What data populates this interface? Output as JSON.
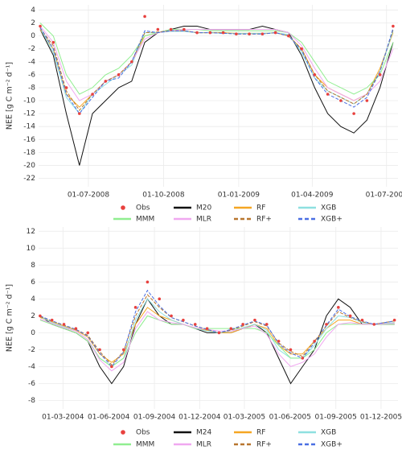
{
  "chart_data": [
    {
      "type": "line",
      "y_label": "NEE [g C m⁻² d⁻¹]",
      "grid": true,
      "xlim": [
        "2008-05-01",
        "2009-07-15"
      ],
      "xticks": [
        {
          "value": "2008-07-01",
          "label": "01-07-2008"
        },
        {
          "value": "2008-10-01",
          "label": "01-10-2008"
        },
        {
          "value": "2009-01-01",
          "label": "01-01-2009"
        },
        {
          "value": "2009-04-01",
          "label": "01-04-2009"
        },
        {
          "value": "2009-07-01",
          "label": "01-07-2009"
        }
      ],
      "ylim": [
        -23.3,
        4.8
      ],
      "yticks": [
        4,
        2,
        0,
        -2,
        -4,
        -6,
        -8,
        -10,
        -12,
        -14,
        -16,
        -18,
        -20,
        -22
      ],
      "x": [
        "2008-05-03",
        "2008-05-19",
        "2008-06-04",
        "2008-06-20",
        "2008-07-06",
        "2008-07-22",
        "2008-08-07",
        "2008-08-23",
        "2008-09-08",
        "2008-09-24",
        "2008-10-10",
        "2008-10-26",
        "2008-11-11",
        "2008-11-27",
        "2008-12-13",
        "2008-12-29",
        "2009-01-14",
        "2009-01-30",
        "2009-02-15",
        "2009-03-03",
        "2009-03-19",
        "2009-04-04",
        "2009-04-20",
        "2009-05-06",
        "2009-05-22",
        "2009-06-07",
        "2009-06-23",
        "2009-07-09"
      ],
      "series": [
        {
          "name": "Obs",
          "color": "#e8413e",
          "points": true,
          "values": [
            1.5,
            -1,
            -8,
            -12,
            -9,
            -7,
            -6,
            -4,
            3,
            1,
            1,
            1,
            0.5,
            0.5,
            0.5,
            0.3,
            0.3,
            0.3,
            0.5,
            0,
            -2,
            -6,
            -9,
            -10,
            -12,
            -10,
            -6,
            1.5
          ]
        },
        {
          "name": "M20",
          "color": "#111111",
          "values": [
            1,
            -3,
            -12,
            -20,
            -12,
            -10,
            -8,
            -7,
            -1,
            0.5,
            1,
            1.5,
            1.5,
            1,
            1,
            1,
            1,
            1.5,
            1,
            0.5,
            -3,
            -8,
            -12,
            -14,
            -15,
            -13,
            -8,
            -1
          ]
        },
        {
          "name": "RF",
          "color": "#f5a623",
          "values": [
            1,
            -2,
            -9,
            -11,
            -9,
            -7,
            -6,
            -4,
            0,
            0.5,
            0.8,
            0.8,
            0.5,
            0.5,
            0.5,
            0.4,
            0.4,
            0.4,
            0.5,
            0,
            -2,
            -6,
            -8,
            -9,
            -10,
            -9,
            -5,
            0.5
          ]
        },
        {
          "name": "XGB",
          "color": "#8ee0e0",
          "values": [
            1.2,
            -2.5,
            -9.5,
            -12,
            -9,
            -7.5,
            -6,
            -4.5,
            0.5,
            0.5,
            0.7,
            0.7,
            0.5,
            0.5,
            0.4,
            0.4,
            0.4,
            0.4,
            0.5,
            0.2,
            -2.5,
            -6.5,
            -8.5,
            -9.5,
            -10.5,
            -9,
            -5.5,
            0.8
          ]
        },
        {
          "name": "MMM",
          "color": "#90ee90",
          "values": [
            2,
            0,
            -6,
            -9,
            -8,
            -6,
            -5,
            -3,
            0,
            0.5,
            1,
            1,
            1,
            0.8,
            0.8,
            0.8,
            0.8,
            0.8,
            0.8,
            0.5,
            -1,
            -4,
            -7,
            -8,
            -9,
            -8,
            -6,
            -1
          ]
        },
        {
          "name": "MLR",
          "color": "#f0a8f0",
          "values": [
            1.5,
            -1,
            -7,
            -10,
            -9,
            -7,
            -6,
            -4,
            -0.5,
            0.5,
            0.8,
            1,
            1,
            1,
            1,
            1,
            1,
            1,
            1,
            0.5,
            -1.5,
            -5,
            -8,
            -9,
            -10,
            -9,
            -7,
            -2
          ]
        },
        {
          "name": "RF+",
          "color": "#b8762f",
          "dashed": true,
          "values": [
            1.2,
            -1.5,
            -8.5,
            -11.5,
            -9,
            -7,
            -6,
            -4,
            0.5,
            0.6,
            0.8,
            0.8,
            0.5,
            0.5,
            0.5,
            0.3,
            0.3,
            0.3,
            0.5,
            0,
            -2,
            -6,
            -8.5,
            -9.5,
            -10.5,
            -9,
            -5.5,
            1
          ]
        },
        {
          "name": "XGB+",
          "color": "#4a6fe3",
          "dashed": true,
          "values": [
            1.3,
            -2,
            -9,
            -12,
            -9.5,
            -7,
            -6.5,
            -4,
            0.8,
            0.5,
            0.8,
            0.8,
            0.5,
            0.5,
            0.4,
            0.3,
            0.3,
            0.3,
            0.5,
            0,
            -2.2,
            -6.5,
            -9,
            -10,
            -11,
            -9.5,
            -5.5,
            1.2
          ]
        }
      ]
    },
    {
      "type": "line",
      "y_label": "NEE [g C m⁻² d⁻¹]",
      "grid": true,
      "xlim": [
        "2004-01-12",
        "2006-01-04"
      ],
      "xticks": [
        {
          "value": "2004-03-01",
          "label": "01-03-2004"
        },
        {
          "value": "2004-06-01",
          "label": "01-06-2004"
        },
        {
          "value": "2004-09-01",
          "label": "01-09-2004"
        },
        {
          "value": "2004-12-01",
          "label": "01-12-2004"
        },
        {
          "value": "2005-03-01",
          "label": "01-03-2005"
        },
        {
          "value": "2005-06-01",
          "label": "01-06-2005"
        },
        {
          "value": "2005-09-01",
          "label": "01-09-2005"
        },
        {
          "value": "2005-12-01",
          "label": "01-12-2005"
        }
      ],
      "ylim": [
        -9,
        12.5
      ],
      "yticks": [
        12,
        10,
        8,
        6,
        4,
        2,
        0,
        -2,
        -4,
        -6,
        -8
      ],
      "x": [
        "2004-01-15",
        "2004-02-08",
        "2004-03-03",
        "2004-03-27",
        "2004-04-20",
        "2004-05-14",
        "2004-06-07",
        "2004-07-01",
        "2004-07-25",
        "2004-08-18",
        "2004-09-11",
        "2004-10-05",
        "2004-10-29",
        "2004-11-22",
        "2004-12-16",
        "2005-01-09",
        "2005-02-02",
        "2005-02-26",
        "2005-03-22",
        "2005-04-15",
        "2005-05-09",
        "2005-06-02",
        "2005-06-26",
        "2005-07-20",
        "2005-08-13",
        "2005-09-06",
        "2005-09-30",
        "2005-10-24",
        "2005-11-17",
        "2005-12-28"
      ],
      "series": [
        {
          "name": "Obs",
          "color": "#e8413e",
          "points": true,
          "values": [
            2,
            1.5,
            1,
            0.5,
            0,
            -2,
            -4,
            -2,
            3,
            6,
            4,
            2,
            1.5,
            1,
            0.5,
            0,
            0.5,
            1,
            1.5,
            1,
            -1,
            -2,
            -3,
            -1,
            1,
            3,
            2,
            1.5,
            1,
            1.5
          ]
        },
        {
          "name": "M24",
          "color": "#111111",
          "values": [
            2,
            1,
            0.5,
            0,
            -1,
            -4,
            -6,
            -4,
            1,
            4,
            2,
            1,
            1,
            0.5,
            0,
            0,
            0,
            0.5,
            1,
            0,
            -3,
            -6,
            -4,
            -2,
            2,
            4,
            3,
            1,
            1,
            1
          ]
        },
        {
          "name": "RF",
          "color": "#f5a623",
          "values": [
            1.8,
            1.3,
            0.8,
            0.3,
            -0.5,
            -2.5,
            -3.5,
            -2.5,
            1,
            3,
            2,
            1.5,
            1,
            0.5,
            0.3,
            0,
            0,
            0.5,
            1,
            0.5,
            -1.5,
            -2.5,
            -2.5,
            -1,
            0.5,
            1.5,
            1.5,
            1,
            1,
            1.2
          ]
        },
        {
          "name": "XGB",
          "color": "#8ee0e0",
          "values": [
            1.9,
            1.2,
            0.7,
            0.2,
            -0.8,
            -3,
            -4,
            -3,
            1.5,
            4,
            2.5,
            1.5,
            1,
            0.5,
            0.2,
            0,
            0.2,
            0.6,
            1,
            0.3,
            -2,
            -3,
            -3,
            -1.5,
            0.5,
            2,
            1.8,
            1.2,
            1,
            1.2
          ]
        },
        {
          "name": "MMM",
          "color": "#90ee90",
          "values": [
            1.5,
            1,
            0.5,
            0,
            -1,
            -3,
            -4,
            -3,
            0,
            2,
            1.5,
            1,
            1,
            0.5,
            0.5,
            0.5,
            0.5,
            0.5,
            0.5,
            0,
            -1.5,
            -3,
            -3,
            -2,
            0,
            1,
            1,
            1,
            1,
            1
          ]
        },
        {
          "name": "MLR",
          "color": "#f0a8f0",
          "values": [
            1.6,
            1.1,
            0.6,
            0.2,
            -0.8,
            -3.2,
            -4.5,
            -3.5,
            0.5,
            2.5,
            1.5,
            1.2,
            1,
            0.6,
            0.4,
            0.2,
            0.2,
            0.5,
            0.8,
            -0.2,
            -2.5,
            -4,
            -3.5,
            -2.5,
            -0.5,
            1,
            1.2,
            1,
            1,
            1.1
          ]
        },
        {
          "name": "RF+",
          "color": "#b8762f",
          "dashed": true,
          "values": [
            1.9,
            1.4,
            0.9,
            0.4,
            -0.3,
            -2.2,
            -3.8,
            -2.2,
            2,
            4.5,
            3,
            1.8,
            1.3,
            0.8,
            0.4,
            0,
            0.3,
            0.8,
            1.3,
            0.8,
            -1.2,
            -2.2,
            -2.8,
            -1,
            0.8,
            2.5,
            1.8,
            1.3,
            1,
            1.4
          ]
        },
        {
          "name": "XGB+",
          "color": "#4a6fe3",
          "dashed": true,
          "values": [
            2,
            1.4,
            0.9,
            0.4,
            -0.4,
            -2.4,
            -4,
            -2.3,
            2.5,
            5,
            3.2,
            1.8,
            1.3,
            0.8,
            0.4,
            0,
            0.4,
            0.9,
            1.4,
            0.9,
            -1.3,
            -2.4,
            -3,
            -1.2,
            0.9,
            2.8,
            1.9,
            1.4,
            1,
            1.4
          ]
        }
      ]
    }
  ]
}
